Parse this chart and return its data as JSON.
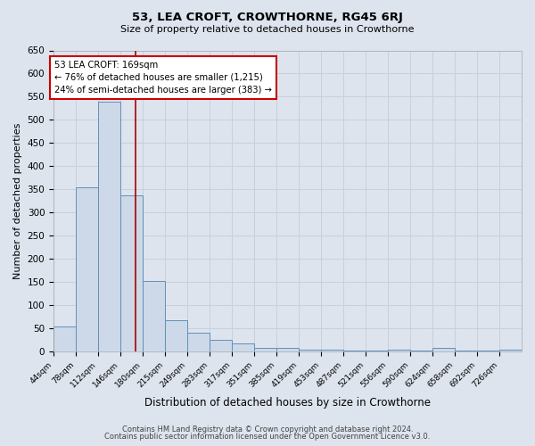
{
  "title": "53, LEA CROFT, CROWTHORNE, RG45 6RJ",
  "subtitle": "Size of property relative to detached houses in Crowthorne",
  "xlabel": "Distribution of detached houses by size in Crowthorne",
  "ylabel": "Number of detached properties",
  "bin_labels": [
    "44sqm",
    "78sqm",
    "112sqm",
    "146sqm",
    "180sqm",
    "215sqm",
    "249sqm",
    "283sqm",
    "317sqm",
    "351sqm",
    "385sqm",
    "419sqm",
    "453sqm",
    "487sqm",
    "521sqm",
    "556sqm",
    "590sqm",
    "624sqm",
    "658sqm",
    "692sqm",
    "726sqm"
  ],
  "bin_edges": [
    44,
    78,
    112,
    146,
    180,
    215,
    249,
    283,
    317,
    351,
    385,
    419,
    453,
    487,
    521,
    556,
    590,
    624,
    658,
    692,
    726,
    760
  ],
  "bar_heights": [
    55,
    355,
    540,
    338,
    153,
    68,
    42,
    25,
    18,
    8,
    8,
    5,
    4,
    3,
    3,
    5,
    3,
    8,
    2,
    3,
    4
  ],
  "bar_color": "#cdd9e8",
  "bar_edge_color": "#6090bb",
  "property_size": 169,
  "vline_color": "#aa0000",
  "annotation_line1": "53 LEA CROFT: 169sqm",
  "annotation_line2": "← 76% of detached houses are smaller (1,215)",
  "annotation_line3": "24% of semi-detached houses are larger (383) →",
  "annotation_box_color": "white",
  "annotation_box_edge": "#cc0000",
  "ylim": [
    0,
    650
  ],
  "yticks": [
    0,
    50,
    100,
    150,
    200,
    250,
    300,
    350,
    400,
    450,
    500,
    550,
    600,
    650
  ],
  "grid_color": "#c8d0dc",
  "background_color": "#dde4ee",
  "footnote1": "Contains HM Land Registry data © Crown copyright and database right 2024.",
  "footnote2": "Contains public sector information licensed under the Open Government Licence v3.0."
}
